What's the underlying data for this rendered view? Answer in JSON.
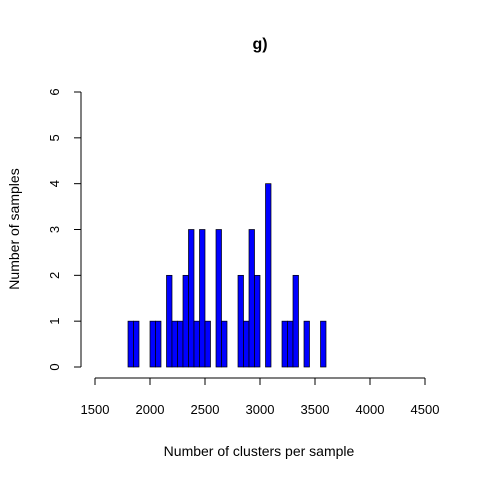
{
  "chart_data": {
    "type": "bar",
    "title": "g)",
    "xlabel": "Number of clusters per sample",
    "ylabel": "Number of samples",
    "xlim": [
      1500,
      4500
    ],
    "ylim": [
      0,
      6
    ],
    "xticks": [
      1500,
      2000,
      2500,
      3000,
      3500,
      4000,
      4500
    ],
    "yticks": [
      0,
      1,
      2,
      3,
      4,
      5,
      6
    ],
    "bin_width": 50,
    "bar_color": "#0000ff",
    "grid": false,
    "bins": [
      {
        "x0": 1800,
        "x1": 1850,
        "count": 1
      },
      {
        "x0": 1850,
        "x1": 1900,
        "count": 1
      },
      {
        "x0": 2000,
        "x1": 2050,
        "count": 1
      },
      {
        "x0": 2050,
        "x1": 2100,
        "count": 1
      },
      {
        "x0": 2150,
        "x1": 2200,
        "count": 2
      },
      {
        "x0": 2200,
        "x1": 2250,
        "count": 1
      },
      {
        "x0": 2250,
        "x1": 2300,
        "count": 1
      },
      {
        "x0": 2300,
        "x1": 2350,
        "count": 2
      },
      {
        "x0": 2350,
        "x1": 2400,
        "count": 3
      },
      {
        "x0": 2400,
        "x1": 2450,
        "count": 1
      },
      {
        "x0": 2450,
        "x1": 2500,
        "count": 3
      },
      {
        "x0": 2500,
        "x1": 2550,
        "count": 1
      },
      {
        "x0": 2600,
        "x1": 2650,
        "count": 3
      },
      {
        "x0": 2650,
        "x1": 2700,
        "count": 1
      },
      {
        "x0": 2800,
        "x1": 2850,
        "count": 2
      },
      {
        "x0": 2850,
        "x1": 2900,
        "count": 1
      },
      {
        "x0": 2900,
        "x1": 2950,
        "count": 3
      },
      {
        "x0": 2950,
        "x1": 3000,
        "count": 2
      },
      {
        "x0": 3050,
        "x1": 3100,
        "count": 4
      },
      {
        "x0": 3200,
        "x1": 3250,
        "count": 1
      },
      {
        "x0": 3250,
        "x1": 3300,
        "count": 1
      },
      {
        "x0": 3300,
        "x1": 3350,
        "count": 2
      },
      {
        "x0": 3400,
        "x1": 3450,
        "count": 1
      },
      {
        "x0": 3550,
        "x1": 3600,
        "count": 1
      }
    ]
  }
}
